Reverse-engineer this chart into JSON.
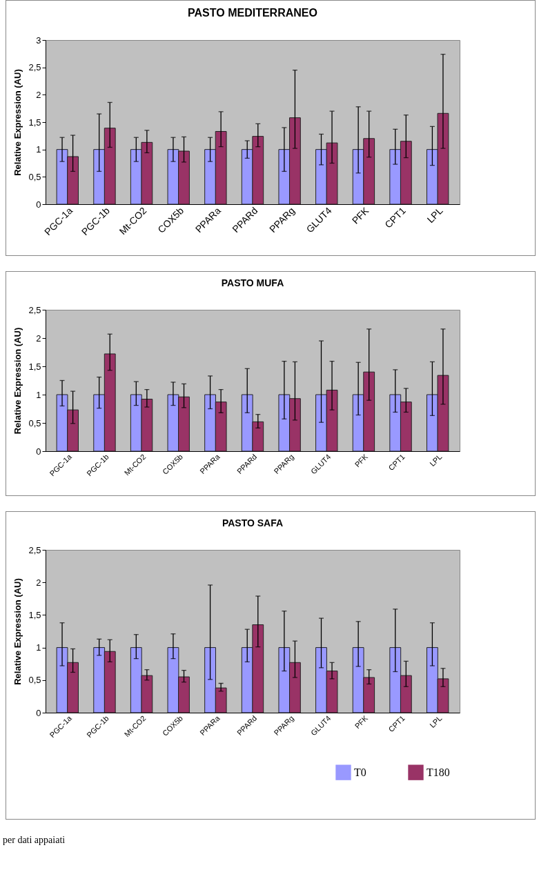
{
  "chart_data": [
    {
      "type": "bar",
      "title": "PASTO MEDITERRANEO",
      "ylabel": "Relative Expression (AU)",
      "categories": [
        "PGC-1a",
        "PGC-1b",
        "Mt-CO2",
        "COX5b",
        "PPARa",
        "PPARd",
        "PPARg",
        "GLUT4",
        "PFK",
        "CPT1",
        "LPL"
      ],
      "series": [
        {
          "color": "#9999ff",
          "values": [
            1,
            1,
            1,
            1,
            1,
            1,
            1,
            1,
            1,
            1,
            1
          ],
          "errors": [
            [
              0.78,
              1.22
            ],
            [
              0.6,
              1.65
            ],
            [
              0.78,
              1.22
            ],
            [
              0.78,
              1.22
            ],
            [
              0.78,
              1.22
            ],
            [
              0.84,
              1.16
            ],
            [
              0.6,
              1.4
            ],
            [
              0.72,
              1.28
            ],
            [
              0.57,
              1.78
            ],
            [
              0.73,
              1.37
            ],
            [
              0.71,
              1.42
            ]
          ]
        },
        {
          "color": "#993366",
          "values": [
            0.87,
            1.39,
            1.13,
            0.97,
            1.33,
            1.24,
            1.58,
            1.12,
            1.2,
            1.15,
            1.66
          ],
          "errors": [
            [
              0.6,
              1.26
            ],
            [
              1.04,
              1.86
            ],
            [
              0.94,
              1.35
            ],
            [
              0.77,
              1.23
            ],
            [
              1.05,
              1.69
            ],
            [
              1.05,
              1.47
            ],
            [
              1.02,
              2.45
            ],
            [
              0.75,
              1.7
            ],
            [
              0.86,
              1.7
            ],
            [
              0.85,
              1.63
            ],
            [
              1.02,
              2.74
            ]
          ]
        }
      ],
      "ylim": [
        0,
        3
      ],
      "yticks": [
        0,
        {
          "value": 0.5,
          "label": "0,5"
        },
        1,
        {
          "value": 1.5,
          "label": "1,5"
        },
        2,
        {
          "value": 2.5,
          "label": "2,5"
        },
        3
      ],
      "grid": false,
      "legend": false
    },
    {
      "type": "bar",
      "title": "PASTO MUFA",
      "ylabel": "Relative Expression (AU)",
      "categories": [
        "PGC-1a",
        "PGC-1b",
        "Mt-CO2",
        "COX5b",
        "PPARa",
        "PPARd",
        "PPARg",
        "GLUT4",
        "PFK",
        "CPT1",
        "LPL"
      ],
      "series": [
        {
          "color": "#9999ff",
          "values": [
            1,
            1,
            1,
            1,
            1,
            1,
            1,
            1,
            1,
            1,
            1
          ],
          "errors": [
            [
              0.8,
              1.25
            ],
            [
              0.76,
              1.31
            ],
            [
              0.81,
              1.23
            ],
            [
              0.81,
              1.22
            ],
            [
              0.75,
              1.33
            ],
            [
              0.68,
              1.46
            ],
            [
              0.57,
              1.59
            ],
            [
              0.51,
              1.95
            ],
            [
              0.64,
              1.57
            ],
            [
              0.69,
              1.44
            ],
            [
              0.63,
              1.58
            ]
          ]
        },
        {
          "color": "#993366",
          "values": [
            0.73,
            1.72,
            0.92,
            0.96,
            0.87,
            0.52,
            0.93,
            1.08,
            1.4,
            0.87,
            1.34
          ],
          "errors": [
            [
              0.49,
              1.06
            ],
            [
              1.43,
              2.07
            ],
            [
              0.78,
              1.09
            ],
            [
              0.77,
              1.19
            ],
            [
              0.68,
              1.09
            ],
            [
              0.41,
              0.65
            ],
            [
              0.55,
              1.58
            ],
            [
              0.73,
              1.59
            ],
            [
              0.9,
              2.16
            ],
            [
              0.69,
              1.11
            ],
            [
              0.83,
              2.16
            ]
          ]
        }
      ],
      "ylim": [
        0,
        2.5
      ],
      "yticks": [
        0,
        {
          "value": 0.5,
          "label": "0,5"
        },
        1,
        {
          "value": 1.5,
          "label": "1,5"
        },
        2,
        {
          "value": 2.5,
          "label": "2,5"
        }
      ],
      "grid": false,
      "legend": false
    },
    {
      "type": "bar",
      "title": "PASTO SAFA",
      "ylabel": "Relative Expression (AU)",
      "categories": [
        "PGC-1a",
        "PGC-1b",
        "Mt-CO2",
        "COX5b",
        "PPARa",
        "PPARd",
        "PPARg",
        "GLUT4",
        "PFK",
        "CPT1",
        "LPL"
      ],
      "series": [
        {
          "name": "T0",
          "color": "#9999ff",
          "values": [
            1,
            1,
            1,
            1,
            1,
            1,
            1,
            1,
            1,
            1,
            1
          ],
          "errors": [
            [
              0.72,
              1.38
            ],
            [
              0.88,
              1.13
            ],
            [
              0.83,
              1.2
            ],
            [
              0.83,
              1.21
            ],
            [
              0.51,
              1.96
            ],
            [
              0.78,
              1.28
            ],
            [
              0.64,
              1.56
            ],
            [
              0.69,
              1.45
            ],
            [
              0.71,
              1.4
            ],
            [
              0.63,
              1.59
            ],
            [
              0.72,
              1.38
            ]
          ]
        },
        {
          "name": "T180",
          "color": "#993366",
          "values": [
            0.77,
            0.94,
            0.57,
            0.55,
            0.38,
            1.35,
            0.77,
            0.64,
            0.54,
            0.57,
            0.52
          ],
          "errors": [
            [
              0.62,
              0.98
            ],
            [
              0.78,
              1.12
            ],
            [
              0.5,
              0.66
            ],
            [
              0.47,
              0.65
            ],
            [
              0.33,
              0.45
            ],
            [
              1.01,
              1.79
            ],
            [
              0.54,
              1.1
            ],
            [
              0.52,
              0.77
            ],
            [
              0.44,
              0.66
            ],
            [
              0.4,
              0.79
            ],
            [
              0.4,
              0.68
            ]
          ]
        }
      ],
      "ylim": [
        0,
        2.5
      ],
      "yticks": [
        0,
        {
          "value": 0.5,
          "label": "0,5"
        },
        1,
        {
          "value": 1.5,
          "label": "1,5"
        },
        2,
        {
          "value": 2.5,
          "label": "2,5"
        }
      ],
      "grid": false,
      "legend": "bottom right",
      "annotations": [
        "per dati appaiati"
      ]
    }
  ]
}
